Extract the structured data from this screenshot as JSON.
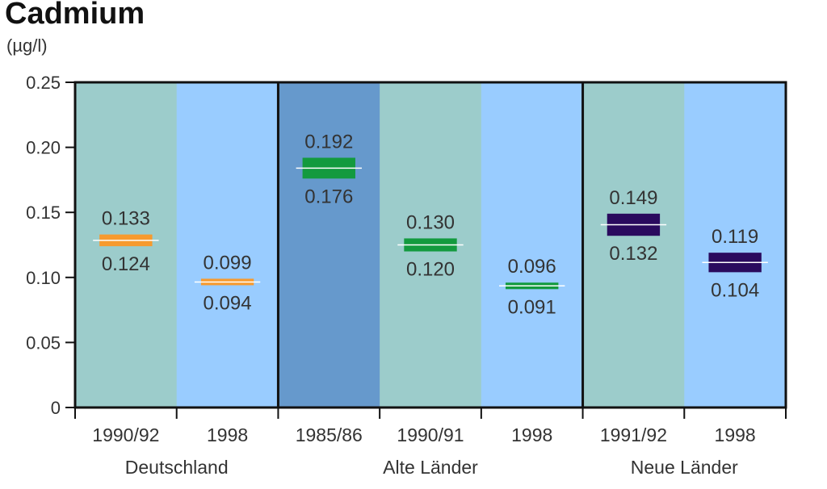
{
  "title": "Cadmium",
  "unit": "(µg/l)",
  "chart_data": {
    "type": "range-bar",
    "title": "Cadmium",
    "ylabel": "(µg/l)",
    "ylim": [
      0,
      0.25
    ],
    "yticks": [
      "0",
      "0.05",
      "0.10",
      "0.15",
      "0.20",
      "0.25"
    ],
    "yticks_values": [
      0,
      0.05,
      0.1,
      0.15,
      0.2,
      0.25
    ],
    "categories": [
      "1990/92",
      "1998",
      "1985/86",
      "1990/91",
      "1998",
      "1991/92",
      "1998"
    ],
    "groups": [
      {
        "name": "Deutschland",
        "categories": [
          0,
          1
        ]
      },
      {
        "name": "Alte Länder",
        "categories": [
          2,
          3,
          4
        ]
      },
      {
        "name": "Neue Länder",
        "categories": [
          5,
          6
        ]
      }
    ],
    "ranges": [
      {
        "category": "1990/92",
        "high": 0.133,
        "low": 0.124,
        "high_label": "0.133",
        "low_label": "0.124",
        "color": "#f79a2e"
      },
      {
        "category": "1998",
        "high": 0.099,
        "low": 0.094,
        "high_label": "0.099",
        "low_label": "0.094",
        "color": "#f79a2e"
      },
      {
        "category": "1985/86",
        "high": 0.192,
        "low": 0.176,
        "high_label": "0.192",
        "low_label": "0.176",
        "color": "#139a3e"
      },
      {
        "category": "1990/91",
        "high": 0.13,
        "low": 0.12,
        "high_label": "0.130",
        "low_label": "0.120",
        "color": "#139a3e"
      },
      {
        "category": "1998",
        "high": 0.096,
        "low": 0.091,
        "high_label": "0.096",
        "low_label": "0.091",
        "color": "#139a3e"
      },
      {
        "category": "1991/92",
        "high": 0.149,
        "low": 0.132,
        "high_label": "0.149",
        "low_label": "0.132",
        "color": "#2a0a5e"
      },
      {
        "category": "1998",
        "high": 0.119,
        "low": 0.104,
        "high_label": "0.119",
        "low_label": "0.104",
        "color": "#2a0a5e"
      }
    ],
    "column_colors": [
      "#9ccccb",
      "#99ccff",
      "#6699cc",
      "#9ccccb",
      "#99ccff",
      "#9ccccb",
      "#99ccff"
    ],
    "grid": false,
    "legend": "none"
  }
}
